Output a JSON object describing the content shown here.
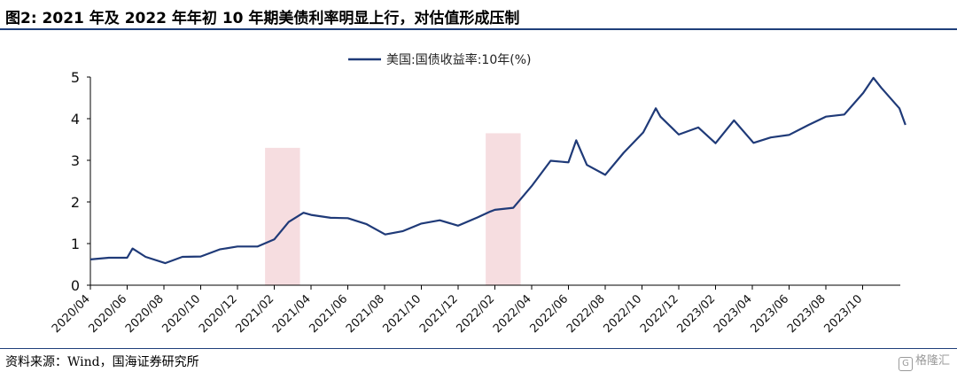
{
  "header": {
    "title": "图2:  2021 年及 2022 年年初 10 年期美债利率明显上行，对估值形成压制"
  },
  "footer": {
    "source": "资料来源：Wind，国海证券研究所",
    "watermark": "格隆汇",
    "watermark_icon": "G"
  },
  "colors": {
    "line": "#1f3a78",
    "shade": "#f6dde0",
    "rule": "#1f3f7a"
  },
  "chart_data": {
    "type": "line",
    "title": "",
    "legend": [
      "美国:国债收益率:10年(%)"
    ],
    "legend_position": "top-center",
    "xlabel": "",
    "ylabel": "",
    "ylim": [
      0,
      5
    ],
    "yticks": [
      "0",
      "1",
      "2",
      "3",
      "4",
      "5"
    ],
    "xticks": [
      "2020/04",
      "2020/06",
      "2020/08",
      "2020/10",
      "2020/12",
      "2021/02",
      "2021/04",
      "2021/06",
      "2021/08",
      "2021/10",
      "2021/12",
      "2022/02",
      "2022/04",
      "2022/06",
      "2022/08",
      "2022/10",
      "2022/12",
      "2023/02",
      "2023/04",
      "2023/06",
      "2023/08",
      "2023/10"
    ],
    "grid": false,
    "shaded_periods": [
      {
        "start": "2021/01",
        "end": "2021/03",
        "top": 3.3
      },
      {
        "start": "2022/01",
        "end": "2022/03",
        "top": 3.65
      }
    ],
    "series": [
      {
        "name": "美国:国债收益率:10年(%)",
        "x": [
          "2020/04/01",
          "2020/05/01",
          "2020/06/01",
          "2020/06/10",
          "2020/07/01",
          "2020/08/03",
          "2020/09/01",
          "2020/10/01",
          "2020/11/02",
          "2020/12/01",
          "2021/01/04",
          "2021/02/01",
          "2021/02/25",
          "2021/03/19",
          "2021/04/01",
          "2021/05/03",
          "2021/06/01",
          "2021/07/01",
          "2021/08/02",
          "2021/09/01",
          "2021/10/01",
          "2021/11/01",
          "2021/12/01",
          "2022/01/03",
          "2022/01/24",
          "2022/02/01",
          "2022/03/01",
          "2022/04/01",
          "2022/05/02",
          "2022/06/01",
          "2022/06/14",
          "2022/07/01",
          "2022/08/01",
          "2022/09/01",
          "2022/10/03",
          "2022/10/24",
          "2022/11/01",
          "2022/12/01",
          "2023/01/03",
          "2023/02/01",
          "2023/03/01",
          "2023/04/03",
          "2023/05/01",
          "2023/06/01",
          "2023/07/03",
          "2023/08/01",
          "2023/09/01",
          "2023/10/02",
          "2023/10/19",
          "2023/11/01",
          "2023/12/01",
          "2023/12/11"
        ],
        "y": [
          0.62,
          0.66,
          0.66,
          0.88,
          0.68,
          0.53,
          0.68,
          0.69,
          0.86,
          0.93,
          0.93,
          1.1,
          1.52,
          1.74,
          1.69,
          1.62,
          1.61,
          1.47,
          1.22,
          1.3,
          1.48,
          1.56,
          1.43,
          1.63,
          1.77,
          1.81,
          1.86,
          2.38,
          2.99,
          2.95,
          3.48,
          2.89,
          2.65,
          3.18,
          3.67,
          4.25,
          4.05,
          3.62,
          3.79,
          3.41,
          3.96,
          3.42,
          3.55,
          3.61,
          3.85,
          4.05,
          4.1,
          4.62,
          4.98,
          4.75,
          4.25,
          3.85
        ]
      }
    ]
  }
}
